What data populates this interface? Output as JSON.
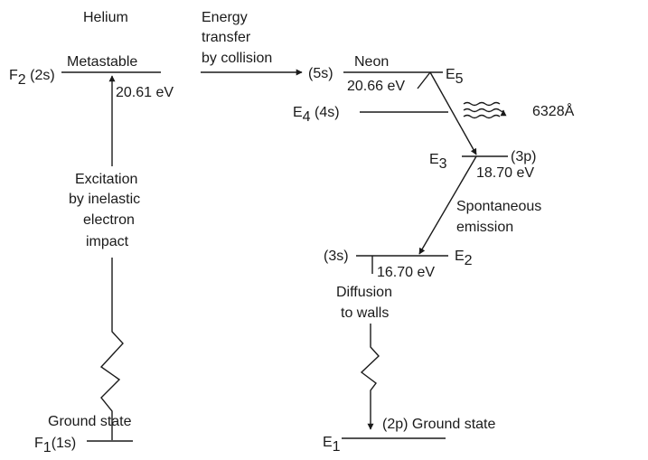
{
  "helium": {
    "title": "Helium",
    "f2_label": "F",
    "f2_sub": "2",
    "f2_state": " (2s)",
    "metastable": "Metastable",
    "energy": "20.61 eV",
    "excitation_lines": [
      "Excitation",
      "by inelastic",
      "electron",
      "impact"
    ],
    "ground_state": "Ground state",
    "f1_label": "F",
    "f1_sub": "1",
    "f1_state": "(1s)"
  },
  "transfer": {
    "lines": [
      "Energy",
      "transfer",
      "by collision"
    ]
  },
  "neon": {
    "title": "Neon",
    "e5_state": "(5s)",
    "e5_energy": "20.66 eV",
    "e5_label": "E",
    "e5_sub": "5",
    "e4_label": "E",
    "e4_sub": "4",
    "e4_state": " (4s)",
    "laser": "6328Å",
    "e3_label": "E",
    "e3_sub": "3",
    "e3_state": "(3p)",
    "e3_energy": "18.70 eV",
    "spontaneous_lines": [
      "Spontaneous",
      "emission"
    ],
    "e2_state": "(3s)",
    "e2_energy": "16.70 eV",
    "e2_label": "E",
    "e2_sub": "2",
    "diffusion_lines": [
      "Diffusion",
      "to walls"
    ],
    "e1_label": "E",
    "e1_sub": "1",
    "ground_state": "(2p) Ground state"
  }
}
